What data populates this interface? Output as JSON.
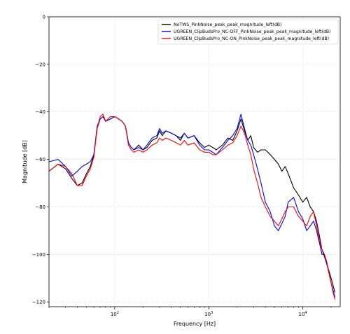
{
  "chart_data": {
    "type": "line",
    "title": "",
    "xlabel": "Frequency [Hz]",
    "ylabel": "Magnitude [dB]",
    "xscale": "log",
    "xlim": [
      20,
      25000
    ],
    "ylim": [
      -122,
      0
    ],
    "yticks": [
      0,
      -20,
      -40,
      -60,
      -80,
      -100,
      -120
    ],
    "xticks": [
      {
        "value": 100,
        "label": "10^2"
      },
      {
        "value": 1000,
        "label": "10^3"
      },
      {
        "value": 10000,
        "label": "10^4"
      }
    ],
    "grid": true,
    "legend_position": "top-right",
    "series": [
      {
        "name": "NoTWS_PinkNoise_peak_peak_magnitude_left(dB)",
        "color": "#000000",
        "x": [
          20,
          25,
          30,
          35,
          40,
          45,
          50,
          55,
          60,
          65,
          70,
          75,
          80,
          90,
          100,
          110,
          120,
          130,
          140,
          150,
          160,
          180,
          200,
          220,
          250,
          280,
          300,
          320,
          350,
          400,
          450,
          500,
          550,
          600,
          700,
          800,
          900,
          1000,
          1100,
          1200,
          1400,
          1600,
          1800,
          2000,
          2200,
          2400,
          2600,
          2800,
          3000,
          3300,
          3600,
          4000,
          4500,
          5000,
          5500,
          6000,
          6500,
          7000,
          8000,
          9000,
          10000,
          11000,
          12000,
          13000,
          14000,
          15000,
          16000,
          17000,
          18000,
          19000,
          20000,
          21000,
          22000
        ],
        "y": [
          -65,
          -62,
          -64,
          -68,
          -71,
          -70,
          -66,
          -63,
          -58,
          -47,
          -43,
          -42,
          -44,
          -43,
          -42,
          -43,
          -44,
          -46,
          -53,
          -55,
          -56,
          -54,
          -56,
          -55,
          -52,
          -51,
          -48,
          -50,
          -48,
          -49,
          -50,
          -52,
          -49,
          -51,
          -50,
          -53,
          -55,
          -54,
          -55,
          -56,
          -54,
          -51,
          -52,
          -48,
          -43,
          -48,
          -52,
          -50,
          -55,
          -57,
          -56,
          -56,
          -58,
          -60,
          -62,
          -65,
          -63,
          -66,
          -72,
          -75,
          -78,
          -76,
          -80,
          -82,
          -86,
          -92,
          -98,
          -101,
          -104,
          -107,
          -110,
          -113,
          -116
        ]
      },
      {
        "name": "UGREEN_ClipBudsPro_NC-OFF_PinkNoise_peak_peak_magnitude_left(dB)",
        "color": "#0000ff",
        "x": [
          20,
          25,
          30,
          35,
          40,
          45,
          50,
          55,
          60,
          65,
          70,
          75,
          80,
          90,
          100,
          110,
          120,
          130,
          140,
          150,
          160,
          180,
          200,
          220,
          250,
          280,
          300,
          320,
          350,
          400,
          450,
          500,
          550,
          600,
          700,
          800,
          900,
          1000,
          1100,
          1200,
          1400,
          1600,
          1800,
          2000,
          2200,
          2400,
          2600,
          2800,
          3000,
          3300,
          3600,
          4000,
          4500,
          5000,
          5500,
          6000,
          6500,
          7000,
          8000,
          9000,
          10000,
          11000,
          12000,
          13000,
          14000,
          15000,
          16000,
          17000,
          18000,
          19000,
          20000,
          21000,
          22000
        ],
        "y": [
          -61,
          -60,
          -63,
          -67,
          -65,
          -63,
          -62,
          -61,
          -58,
          -46,
          -43,
          -42,
          -44,
          -43,
          -42,
          -43,
          -44,
          -46,
          -53,
          -55,
          -56,
          -55,
          -56,
          -54,
          -51,
          -50,
          -47,
          -49,
          -48,
          -49,
          -50,
          -51,
          -49,
          -51,
          -50,
          -54,
          -56,
          -56,
          -57,
          -58,
          -55,
          -52,
          -50,
          -47,
          -41,
          -47,
          -52,
          -54,
          -58,
          -64,
          -70,
          -78,
          -82,
          -88,
          -90,
          -87,
          -84,
          -78,
          -76,
          -82,
          -85,
          -90,
          -88,
          -86,
          -90,
          -95,
          -100,
          -100,
          -104,
          -108,
          -112,
          -115,
          -118
        ]
      },
      {
        "name": "UGREEN_ClipBudsPro_NC-ON_PinkNoise_peak_peak_magnitude_left(dB)",
        "color": "#ff0000",
        "x": [
          20,
          25,
          30,
          35,
          40,
          45,
          50,
          55,
          60,
          65,
          70,
          75,
          80,
          90,
          100,
          110,
          120,
          130,
          140,
          150,
          160,
          180,
          200,
          220,
          250,
          280,
          300,
          320,
          350,
          400,
          450,
          500,
          550,
          600,
          700,
          800,
          900,
          1000,
          1100,
          1200,
          1400,
          1600,
          1800,
          2000,
          2200,
          2400,
          2600,
          2800,
          3000,
          3300,
          3600,
          4000,
          4500,
          5000,
          5500,
          6000,
          6500,
          7000,
          8000,
          9000,
          10000,
          11000,
          12000,
          13000,
          14000,
          15000,
          16000,
          17000,
          18000,
          19000,
          20000,
          21000,
          22000
        ],
        "y": [
          -65,
          -62,
          -63,
          -66,
          -71,
          -71,
          -67,
          -64,
          -59,
          -47,
          -42,
          -41,
          -44,
          -42,
          -42,
          -43,
          -44,
          -46,
          -54,
          -56,
          -57,
          -56,
          -57,
          -56,
          -54,
          -53,
          -51,
          -52,
          -51,
          -52,
          -53,
          -54,
          -52,
          -54,
          -53,
          -56,
          -57,
          -57,
          -58,
          -58,
          -56,
          -54,
          -53,
          -50,
          -46,
          -49,
          -54,
          -58,
          -64,
          -70,
          -76,
          -80,
          -84,
          -86,
          -88,
          -85,
          -82,
          -80,
          -80,
          -84,
          -86,
          -88,
          -84,
          -82,
          -88,
          -94,
          -98,
          -100,
          -103,
          -108,
          -112,
          -116,
          -119
        ]
      }
    ]
  }
}
